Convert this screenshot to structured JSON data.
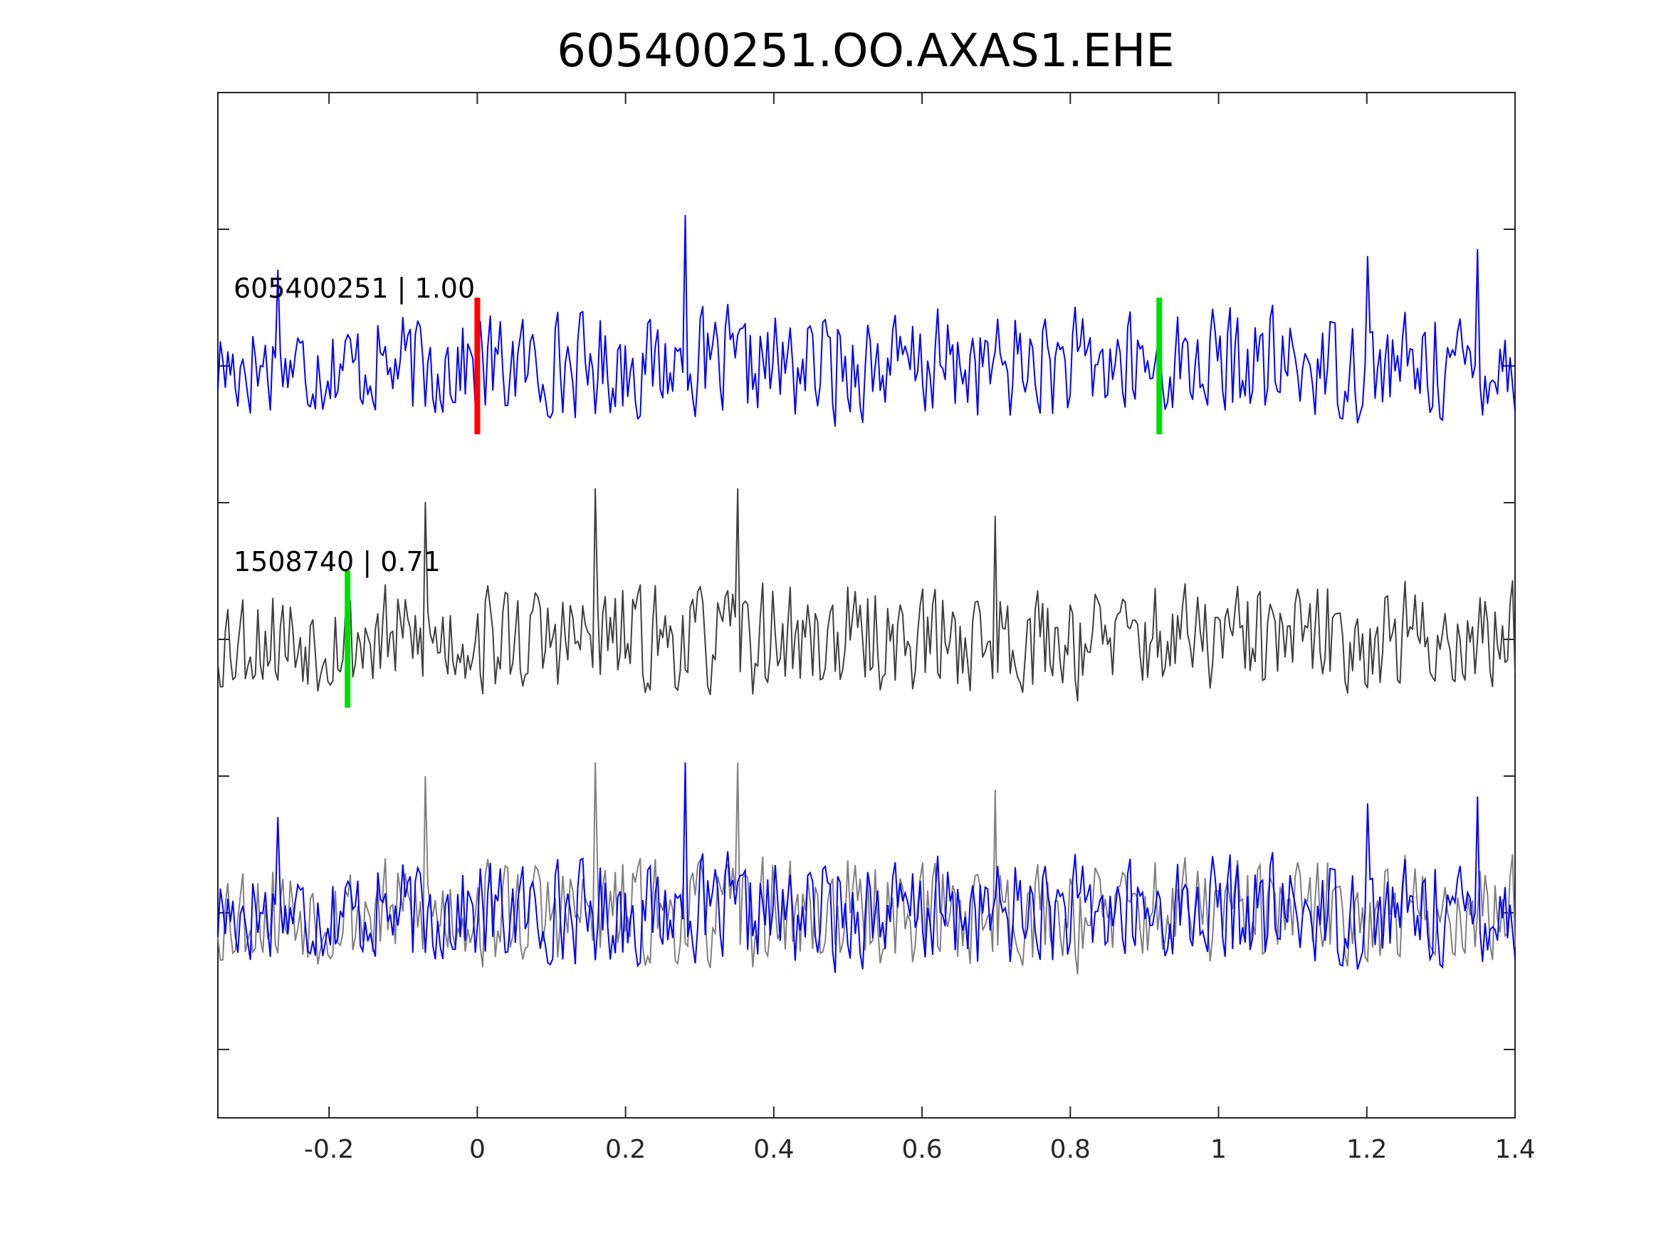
{
  "chart_data": {
    "type": "line",
    "title": "605400251.OO.AXAS1.EHE",
    "xlabel": "",
    "ylabel": "",
    "xlim": [
      -0.35,
      1.4
    ],
    "ylim": [
      0,
      15
    ],
    "xticks": [
      -0.2,
      0,
      0.2,
      0.4,
      0.6,
      0.8,
      1.0,
      1.2,
      1.4
    ],
    "xtick_labels": [
      "-0.2",
      "0",
      "0.2",
      "0.4",
      "0.6",
      "0.8",
      "1",
      "1.2",
      "1.4"
    ],
    "yticks": [
      1,
      3,
      5,
      7,
      9,
      11,
      13
    ],
    "y_tick_labels_shown": false,
    "grid": false,
    "sample_count": 520,
    "colors": {
      "template_trace": "#0000ff",
      "event_trace": "#404040",
      "overlay_trace": "#808080",
      "reference_pick": "#ff0000",
      "matched_pick": "#00dd00",
      "axes": "#262626"
    },
    "traces": [
      {
        "label": "605400251 | 1.00",
        "baseline": 11,
        "amplitude": 1.0,
        "color": "#0000ff",
        "seed": 17,
        "peaks": [
          {
            "x": 0.28,
            "y": 13.2
          },
          {
            "x": 1.35,
            "y": 12.7
          },
          {
            "x": 1.2,
            "y": 12.6
          },
          {
            "x": -0.27,
            "y": 12.4
          }
        ]
      },
      {
        "label": "1508740 | 0.71",
        "baseline": 7,
        "amplitude": 1.0,
        "color": "#404040",
        "seed": 53,
        "peaks": [
          {
            "x": 0.35,
            "y": 9.2
          },
          {
            "x": 0.16,
            "y": 9.2
          },
          {
            "x": -0.07,
            "y": 9.0
          },
          {
            "x": 0.7,
            "y": 8.8
          }
        ]
      },
      {
        "label": "",
        "baseline": 3,
        "amplitude": 1.0,
        "composite": "overlay"
      }
    ],
    "picks": [
      {
        "x": 0.0,
        "y_min": 10.0,
        "y_max": 12.0,
        "color": "#ff0000",
        "trace": "605400251 | 1.00"
      },
      {
        "x": 0.92,
        "y_min": 10.0,
        "y_max": 12.0,
        "color": "#00dd00",
        "trace": "605400251 | 1.00"
      },
      {
        "x": -0.175,
        "y_min": 6.0,
        "y_max": 8.0,
        "color": "#00dd00",
        "trace": "1508740 | 0.71"
      }
    ]
  }
}
